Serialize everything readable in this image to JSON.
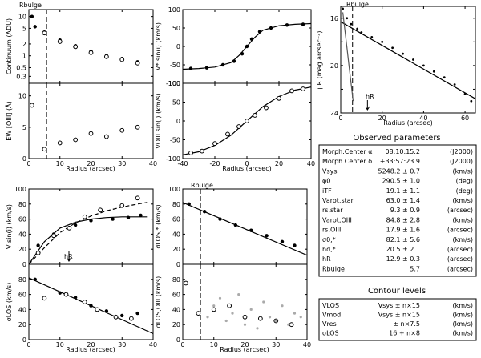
{
  "figure": {
    "observed_parameters": {
      "title": "Observed parameters",
      "rows": [
        {
          "label": "Morph.Center α",
          "value": "08:10:15.2",
          "unit": "(J2000)"
        },
        {
          "label": "Morph.Center δ",
          "value": "+33:57:23.9",
          "unit": "(J2000)"
        },
        {
          "label": "Vsys",
          "value": "5248.2 ± 0.7",
          "unit": "(km/s)"
        },
        {
          "label": "φ0",
          "value": "290.5 ± 1.0",
          "unit": "(deg)"
        },
        {
          "label": "iTF",
          "value": "19.1 ± 1.1",
          "unit": "(deg)"
        },
        {
          "label": "Varot,star",
          "value": "63.0 ± 1.4",
          "unit": "(km/s)"
        },
        {
          "label": "rs,star",
          "value": "9.3 ± 0.9",
          "unit": "(arcsec)"
        },
        {
          "label": "Varot,OIII",
          "value": "84.8 ± 2.8",
          "unit": "(km/s)"
        },
        {
          "label": "rs,OIII",
          "value": "17.9 ± 1.6",
          "unit": "(arcsec)"
        },
        {
          "label": "σ0,*",
          "value": "82.1 ± 5.6",
          "unit": "(km/s)"
        },
        {
          "label": "hσ,*",
          "value": "20.5 ± 2.1",
          "unit": "(arcsec)"
        },
        {
          "label": "hR",
          "value": "12.9 ± 0.3",
          "unit": "(arcsec)"
        },
        {
          "label": "Rbulge",
          "value": "5.7",
          "unit": "(arcsec)"
        }
      ]
    },
    "contour_levels": {
      "title": "Contour levels",
      "rows": [
        {
          "label": "VLOS",
          "value": "Vsys ± n×15",
          "unit": "(km/s)"
        },
        {
          "label": "Vmod",
          "value": "Vsys ± n×15",
          "unit": "(km/s)"
        },
        {
          "label": "Vres",
          "value": "± n×7.5",
          "unit": "(km/s)"
        },
        {
          "label": "σLOS",
          "value": "16 + n×8",
          "unit": "(km/s)"
        }
      ]
    }
  },
  "chart_data": [
    {
      "id": "continuum",
      "type": "scatter",
      "ylabel": "Continuum (ADU)",
      "xlim": [
        0,
        40
      ],
      "ylim": [
        0.2,
        15
      ],
      "yscale": "log",
      "xticks": [
        0,
        10,
        20,
        30,
        40
      ],
      "xticklabels": [],
      "yticks": [
        0.3,
        0.5,
        1,
        2,
        5,
        10
      ],
      "yticklabels": [
        "0.3",
        "0.5",
        "1",
        "2",
        "5",
        "10"
      ],
      "annotations": [
        {
          "text": "Rbulge",
          "x": 5.7
        }
      ],
      "series": [
        {
          "role": "points",
          "x": [
            1,
            2,
            5,
            10,
            15,
            20,
            25,
            30,
            35
          ],
          "y": [
            10,
            5.5,
            4,
            2.5,
            1.8,
            1.3,
            1.0,
            0.85,
            0.7
          ]
        },
        {
          "role": "open",
          "x": [
            5,
            10,
            15,
            20,
            25,
            30,
            35
          ],
          "y": [
            3.8,
            2.3,
            1.7,
            1.2,
            0.95,
            0.8,
            0.65
          ]
        }
      ]
    },
    {
      "id": "ew-oiii",
      "type": "scatter",
      "ylabel": "EW [OIII] (Å)",
      "xlim": [
        0,
        40
      ],
      "ylim": [
        0,
        12
      ],
      "xticks": [
        0,
        10,
        20,
        30,
        40
      ],
      "xticklabels": [
        "0",
        "10",
        "20",
        "30",
        "40"
      ],
      "yticks": [
        0,
        5,
        10
      ],
      "yticklabels": [
        "0",
        "5",
        "10"
      ],
      "xlabel": "Radius (arcsec)",
      "annotations": [
        {
          "text": "Rbulge",
          "x": 5.7
        }
      ],
      "series": [
        {
          "role": "open",
          "x": [
            1,
            5,
            10,
            15,
            20,
            25,
            30,
            35
          ],
          "y": [
            8.5,
            1.5,
            2.5,
            3.0,
            4.0,
            3.5,
            4.5,
            5.0
          ]
        }
      ]
    },
    {
      "id": "vstar-rot",
      "type": "line",
      "ylabel": "V* sin(i) (km/s)",
      "xlim": [
        -40,
        40
      ],
      "ylim": [
        -100,
        100
      ],
      "xticks": [
        -40,
        -20,
        0,
        20,
        40
      ],
      "xticklabels": [],
      "yticks": [
        -100,
        -50,
        0,
        50,
        100
      ],
      "yticklabels": [
        "-100",
        "-50",
        "0",
        "50",
        "100"
      ],
      "series": [
        {
          "role": "model",
          "x": [
            -40,
            -30,
            -20,
            -10,
            -5,
            0,
            5,
            10,
            20,
            30,
            40
          ],
          "y": [
            -62,
            -60,
            -56,
            -44,
            -25,
            0,
            25,
            44,
            56,
            60,
            62
          ]
        },
        {
          "role": "points",
          "x": [
            -35,
            -25,
            -15,
            -8,
            -3,
            0,
            3,
            8,
            15,
            25,
            35
          ],
          "y": [
            -60,
            -58,
            -50,
            -40,
            -20,
            0,
            20,
            40,
            50,
            58,
            60
          ]
        }
      ]
    },
    {
      "id": "voiii-rot",
      "type": "line",
      "ylabel": "VOIII sin(i) (km/s)",
      "xlim": [
        -40,
        40
      ],
      "ylim": [
        -100,
        100
      ],
      "xticks": [
        -40,
        -20,
        0,
        20,
        40
      ],
      "xticklabels": [
        "-40",
        "-20",
        "0",
        "20",
        "40"
      ],
      "yticks": [
        -100,
        -50,
        0,
        50,
        100
      ],
      "yticklabels": [
        "-100",
        "-50",
        "0",
        "50",
        "100"
      ],
      "xlabel": "Radius (arcsec)",
      "series": [
        {
          "role": "model",
          "x": [
            -40,
            -30,
            -20,
            -10,
            0,
            10,
            20,
            30,
            40
          ],
          "y": [
            -90,
            -82,
            -65,
            -38,
            0,
            38,
            65,
            82,
            90
          ]
        },
        {
          "role": "open",
          "x": [
            -35,
            -28,
            -20,
            -12,
            -5,
            0,
            5,
            12,
            20,
            28,
            35
          ],
          "y": [
            -85,
            -80,
            -60,
            -35,
            -15,
            0,
            15,
            35,
            60,
            80,
            85
          ]
        }
      ]
    },
    {
      "id": "surface-brightness",
      "type": "line",
      "ylabel": "μR (mag arcsec⁻²)",
      "xlim": [
        0,
        65
      ],
      "ylim": [
        24,
        15
      ],
      "yinvert": true,
      "xticks": [
        0,
        20,
        40,
        60
      ],
      "xticklabels": [
        "0",
        "20",
        "40",
        "60"
      ],
      "yticks": [
        16,
        18,
        20,
        22,
        24
      ],
      "yticklabels": [
        "16",
        "",
        "20",
        "",
        "24"
      ],
      "xlabel": "Radius (arcsec)",
      "annotations": [
        {
          "text": "Rbulge",
          "x": 5.7
        },
        {
          "text": "hR",
          "x": 12.9
        }
      ],
      "series": [
        {
          "role": "data",
          "x": [
            1,
            3,
            5,
            8,
            10,
            15,
            20,
            25,
            30,
            35,
            40,
            45,
            50,
            55,
            60,
            63
          ],
          "y": [
            15.2,
            16.0,
            16.5,
            16.9,
            17.2,
            17.6,
            18.0,
            18.5,
            19.0,
            19.5,
            20.0,
            20.5,
            21.0,
            21.6,
            22.4,
            23.0
          ]
        },
        {
          "role": "disk",
          "x": [
            0,
            65
          ],
          "y": [
            16.3,
            22.8
          ]
        },
        {
          "role": "bulge",
          "x": [
            1,
            2,
            3,
            4,
            5,
            6
          ],
          "y": [
            15.5,
            17.0,
            18.5,
            20.0,
            21.5,
            23.0
          ]
        }
      ]
    },
    {
      "id": "v-rot-fit",
      "type": "line",
      "ylabel": "V sin(i) (km/s)",
      "xlim": [
        0,
        40
      ],
      "ylim": [
        0,
        100
      ],
      "xticks": [
        0,
        10,
        20,
        30,
        40
      ],
      "xticklabels": [],
      "yticks": [
        0,
        20,
        40,
        60,
        80,
        100
      ],
      "yticklabels": [
        "0",
        "20",
        "40",
        "60",
        "80",
        "100"
      ],
      "annotations": [
        {
          "text": "hR",
          "x": 12.9
        }
      ],
      "series": [
        {
          "role": "star-model",
          "x": [
            0,
            5,
            10,
            15,
            20,
            25,
            30,
            35,
            38
          ],
          "y": [
            0,
            30,
            48,
            56,
            60,
            62,
            63,
            63,
            63
          ]
        },
        {
          "role": "gas-model",
          "x": [
            0,
            5,
            10,
            15,
            20,
            25,
            30,
            35,
            38
          ],
          "y": [
            0,
            22,
            42,
            55,
            64,
            71,
            76,
            80,
            82
          ]
        },
        {
          "role": "points",
          "x": [
            3,
            8,
            15,
            20,
            27,
            32,
            36
          ],
          "y": [
            25,
            40,
            52,
            58,
            60,
            62,
            65
          ]
        },
        {
          "role": "open",
          "x": [
            3,
            8,
            13,
            18,
            23,
            30,
            35
          ],
          "y": [
            15,
            38,
            48,
            63,
            72,
            78,
            88
          ]
        }
      ]
    },
    {
      "id": "sigma-los-fit",
      "type": "scatter",
      "ylabel": "σLOS (km/s)",
      "xlim": [
        0,
        40
      ],
      "ylim": [
        0,
        100
      ],
      "xticks": [
        0,
        10,
        20,
        30,
        40
      ],
      "xticklabels": [
        "0",
        "10",
        "20",
        "30",
        "40"
      ],
      "yticks": [
        0,
        20,
        40,
        60,
        80
      ],
      "yticklabels": [
        "0",
        "20",
        "40",
        "60",
        "80"
      ],
      "xlabel": "Radius (arcsec)",
      "series": [
        {
          "role": "model",
          "x": [
            0,
            40
          ],
          "y": [
            82,
            8
          ]
        },
        {
          "role": "points",
          "x": [
            2,
            10,
            15,
            20,
            25,
            30,
            35
          ],
          "y": [
            80,
            62,
            56,
            45,
            38,
            32,
            35
          ]
        },
        {
          "role": "open",
          "x": [
            5,
            12,
            18,
            22,
            28,
            33
          ],
          "y": [
            55,
            60,
            50,
            40,
            30,
            28
          ]
        }
      ]
    },
    {
      "id": "sigma-los-star",
      "type": "scatter",
      "ylabel": "σLOS,* (km/s)",
      "xlim": [
        0,
        40
      ],
      "ylim": [
        0,
        100
      ],
      "xticks": [
        0,
        10,
        20,
        30,
        40
      ],
      "xticklabels": [],
      "yticks": [
        0,
        20,
        40,
        60,
        80,
        100
      ],
      "yticklabels": [
        "0",
        "20",
        "40",
        "60",
        "80",
        "100"
      ],
      "annotations": [
        {
          "text": "Rbulge",
          "x": 5.7
        }
      ],
      "series": [
        {
          "role": "model",
          "x": [
            0,
            40
          ],
          "y": [
            82,
            12
          ]
        },
        {
          "role": "points",
          "x": [
            2,
            7,
            12,
            17,
            22,
            27,
            32,
            36
          ],
          "y": [
            80,
            70,
            60,
            52,
            45,
            38,
            30,
            25
          ]
        }
      ]
    },
    {
      "id": "sigma-los-oiii",
      "type": "scatter",
      "ylabel": "σLOS,OIII (km/s)",
      "xlim": [
        0,
        40
      ],
      "ylim": [
        0,
        100
      ],
      "xticks": [
        0,
        10,
        20,
        30,
        40
      ],
      "xticklabels": [
        "0",
        "10",
        "20",
        "30",
        "40"
      ],
      "yticks": [
        0,
        20,
        40,
        60,
        80
      ],
      "yticklabels": [
        "0",
        "20",
        "40",
        "60",
        "80"
      ],
      "xlabel": "Radius (arcsec)",
      "annotations": [
        {
          "text": "Rbulge",
          "x": 5.7
        }
      ],
      "series": [
        {
          "role": "open",
          "x": [
            1,
            5,
            10,
            15,
            20,
            25,
            30,
            35
          ],
          "y": [
            75,
            35,
            40,
            45,
            30,
            28,
            25,
            20
          ]
        },
        {
          "role": "scatter",
          "x": [
            8,
            10,
            12,
            14,
            16,
            18,
            20,
            22,
            24,
            26,
            28,
            30,
            32,
            34,
            36,
            38
          ],
          "y": [
            30,
            45,
            55,
            25,
            35,
            60,
            20,
            40,
            15,
            50,
            30,
            25,
            45,
            20,
            35,
            30
          ]
        }
      ]
    }
  ]
}
